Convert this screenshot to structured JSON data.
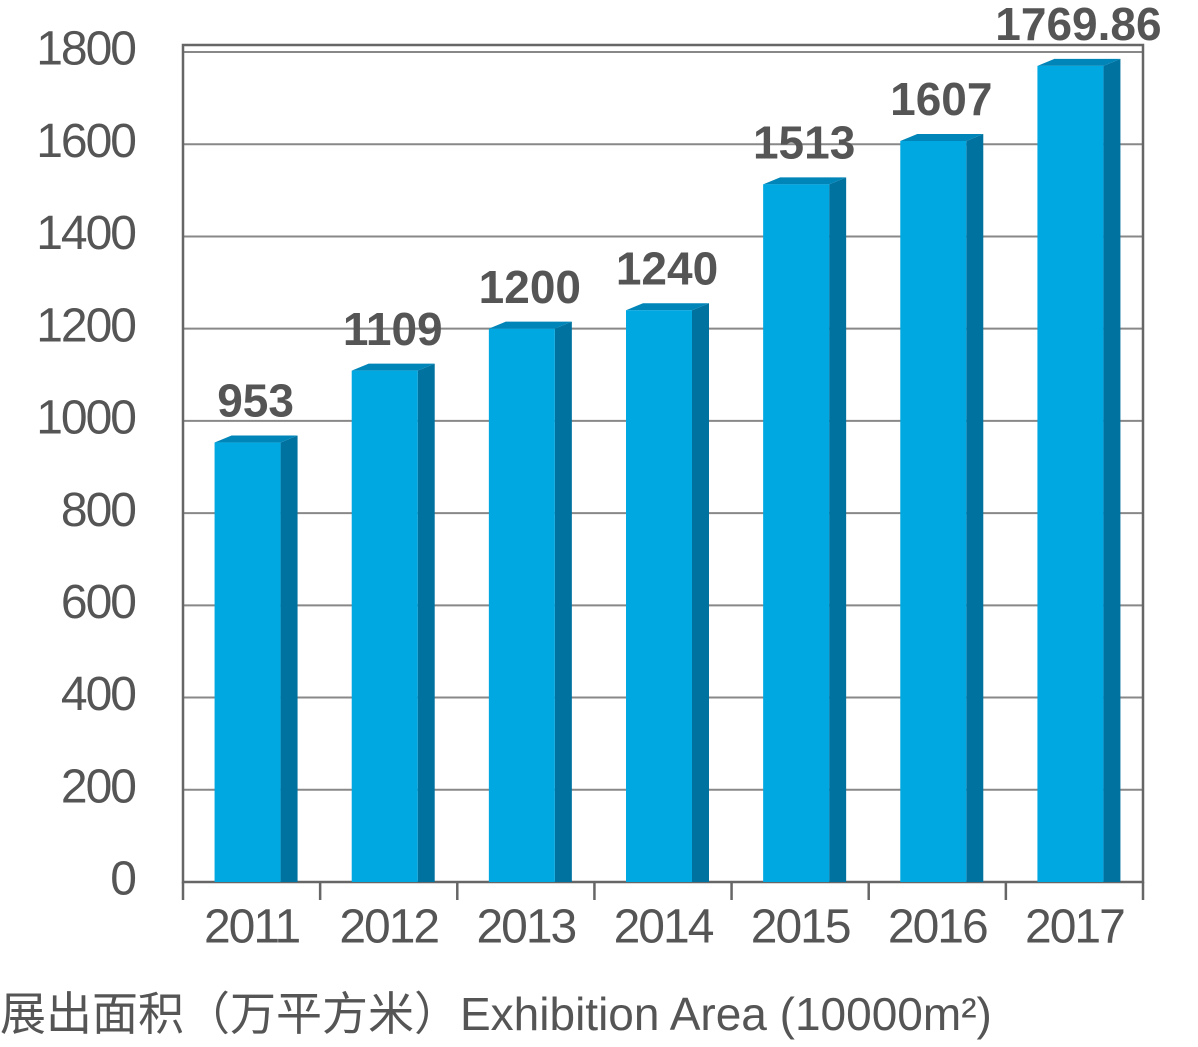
{
  "chart_data": {
    "type": "bar3d",
    "x_label": "展出面积（万平方米）Exhibition Area (10000m²)",
    "categories": [
      "2011",
      "2012",
      "2013",
      "2014",
      "2015",
      "2016",
      "2017"
    ],
    "values": [
      953,
      1109,
      1200,
      1240,
      1513,
      1607,
      1769.86
    ],
    "color": "#00a8e1",
    "ylim": [
      0,
      1800
    ],
    "yticks": [
      0,
      200,
      400,
      600,
      800,
      1000,
      1200,
      1400,
      1600,
      1800
    ],
    "grid": true
  }
}
